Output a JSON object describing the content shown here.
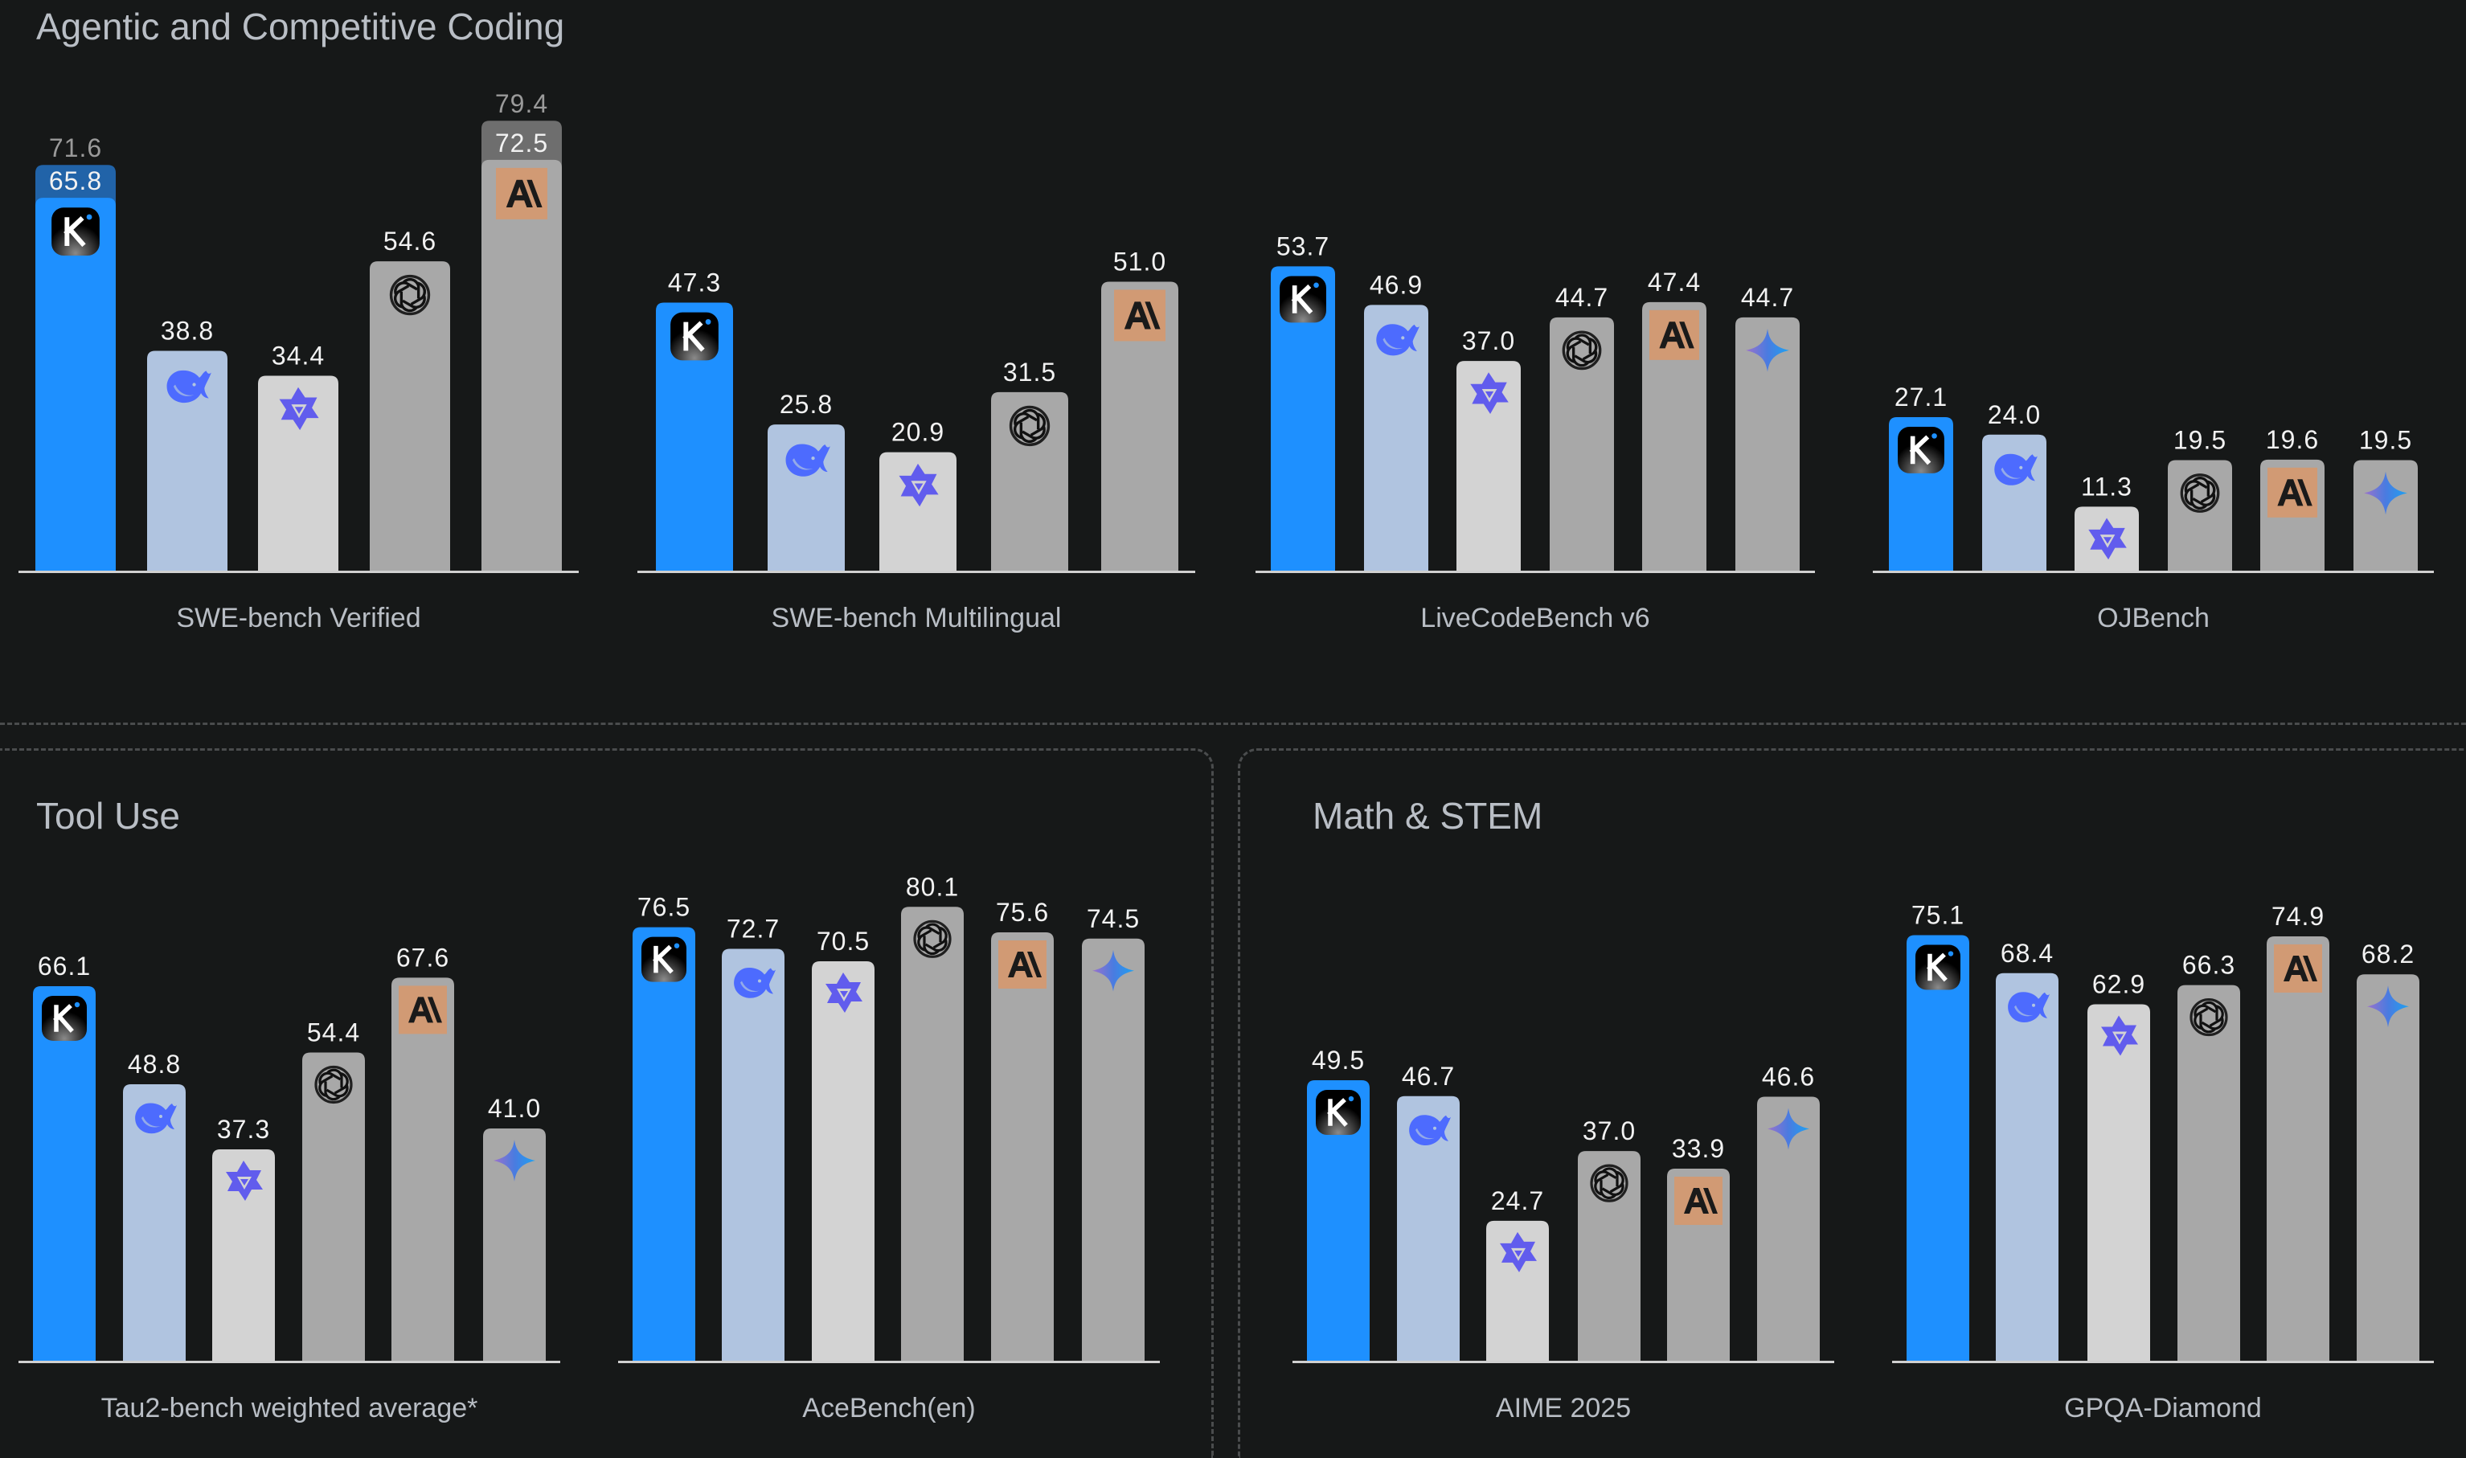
{
  "sections": {
    "coding": {
      "title": "Agentic and Competitive Coding"
    },
    "tool_use": {
      "title": "Tool Use"
    },
    "math_stem": {
      "title": "Math & STEM"
    }
  },
  "models": [
    {
      "key": "kimi",
      "icon": "kimi-k-icon",
      "color": "#1e90ff"
    },
    {
      "key": "deepseek",
      "icon": "deepseek-whale-icon",
      "color": "#b0c4e0"
    },
    {
      "key": "qwen",
      "icon": "qwen-star-icon",
      "color": "#d3d3d3"
    },
    {
      "key": "openai",
      "icon": "openai-knot-icon",
      "color": "#a8a8a8"
    },
    {
      "key": "anthropic",
      "icon": "anthropic-ai-icon",
      "color": "#a8a8a8"
    },
    {
      "key": "gemini",
      "icon": "gemini-sparkle-icon",
      "color": "#a8a8a8"
    }
  ],
  "colors": {
    "kimi_extra": "#2163a8",
    "anthropic_extra": "#6e6e6e",
    "axis": "#d0d0d0",
    "background": "#161818"
  },
  "chart_data": [
    {
      "type": "bar",
      "section": "coding",
      "title": "SWE-bench Verified",
      "categories": [
        "kimi",
        "deepseek",
        "qwen",
        "openai",
        "anthropic"
      ],
      "values": [
        65.8,
        38.8,
        34.4,
        54.6,
        72.5
      ],
      "labels": [
        "65.8",
        "38.8",
        "34.4",
        "54.6",
        "72.5"
      ],
      "extra_values": [
        71.6,
        null,
        null,
        null,
        79.4
      ],
      "extra_labels": [
        "71.6",
        null,
        null,
        null,
        "79.4"
      ]
    },
    {
      "type": "bar",
      "section": "coding",
      "title": "SWE-bench Multilingual",
      "categories": [
        "kimi",
        "deepseek",
        "qwen",
        "openai",
        "anthropic"
      ],
      "values": [
        47.3,
        25.8,
        20.9,
        31.5,
        51.0
      ],
      "labels": [
        "47.3",
        "25.8",
        "20.9",
        "31.5",
        "51.0"
      ]
    },
    {
      "type": "bar",
      "section": "coding",
      "title": "LiveCodeBench v6",
      "categories": [
        "kimi",
        "deepseek",
        "qwen",
        "openai",
        "anthropic",
        "gemini"
      ],
      "values": [
        53.7,
        46.9,
        37.0,
        44.7,
        47.4,
        44.7
      ],
      "labels": [
        "53.7",
        "46.9",
        "37.0",
        "44.7",
        "47.4",
        "44.7"
      ]
    },
    {
      "type": "bar",
      "section": "coding",
      "title": "OJBench",
      "categories": [
        "kimi",
        "deepseek",
        "qwen",
        "openai",
        "anthropic",
        "gemini"
      ],
      "values": [
        27.1,
        24.0,
        11.3,
        19.5,
        19.6,
        19.5
      ],
      "labels": [
        "27.1",
        "24.0",
        "11.3",
        "19.5",
        "19.6",
        "19.5"
      ]
    },
    {
      "type": "bar",
      "section": "tool_use",
      "title": "Tau2-bench weighted average*",
      "categories": [
        "kimi",
        "deepseek",
        "qwen",
        "openai",
        "anthropic",
        "gemini"
      ],
      "values": [
        66.1,
        48.8,
        37.3,
        54.4,
        67.6,
        41.0
      ],
      "labels": [
        "66.1",
        "48.8",
        "37.3",
        "54.4",
        "67.6",
        "41.0"
      ]
    },
    {
      "type": "bar",
      "section": "tool_use",
      "title": "AceBench(en)",
      "categories": [
        "kimi",
        "deepseek",
        "qwen",
        "openai",
        "anthropic",
        "gemini"
      ],
      "values": [
        76.5,
        72.7,
        70.5,
        80.1,
        75.6,
        74.5
      ],
      "labels": [
        "76.5",
        "72.7",
        "70.5",
        "80.1",
        "75.6",
        "74.5"
      ]
    },
    {
      "type": "bar",
      "section": "math_stem",
      "title": "AIME 2025",
      "categories": [
        "kimi",
        "deepseek",
        "qwen",
        "openai",
        "anthropic",
        "gemini"
      ],
      "values": [
        49.5,
        46.7,
        24.7,
        37.0,
        33.9,
        46.6
      ],
      "labels": [
        "49.5",
        "46.7",
        "24.7",
        "37.0",
        "33.9",
        "46.6"
      ]
    },
    {
      "type": "bar",
      "section": "math_stem",
      "title": "GPQA-Diamond",
      "categories": [
        "kimi",
        "deepseek",
        "qwen",
        "openai",
        "anthropic",
        "gemini"
      ],
      "values": [
        75.1,
        68.4,
        62.9,
        66.3,
        74.9,
        68.2
      ],
      "labels": [
        "75.1",
        "68.4",
        "62.9",
        "66.3",
        "74.9",
        "68.2"
      ]
    }
  ]
}
